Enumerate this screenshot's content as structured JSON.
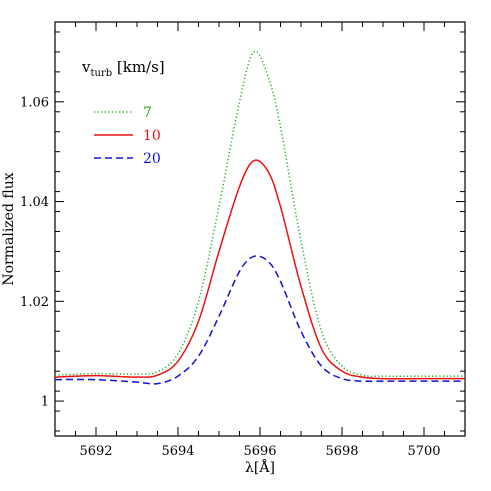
{
  "chart_data": {
    "type": "line",
    "title": "",
    "xlabel": "λ[Å]",
    "ylabel": "Normalized flux",
    "xlim": [
      5691,
      5701
    ],
    "ylim": [
      0.993,
      1.076
    ],
    "x_ticks": [
      5692,
      5694,
      5696,
      5698,
      5700
    ],
    "y_ticks": [
      1,
      1.02,
      1.04,
      1.06
    ],
    "x_tick_labels": [
      "5692",
      "5694",
      "5696",
      "5698",
      "5700"
    ],
    "y_tick_labels": [
      "1",
      "1.02",
      "1.04",
      "1.06"
    ],
    "grid": false,
    "legend_placement": "top-left",
    "legend_title": {
      "main": "v",
      "sub": "turb",
      "unit": " [km/s]"
    },
    "series": [
      {
        "name": "7",
        "color": "#22aa22",
        "dash": "dotted",
        "x": [
          5691,
          5692,
          5693,
          5693.5,
          5694,
          5694.5,
          5695,
          5695.5,
          5695.85,
          5696.2,
          5696.5,
          5697,
          5697.5,
          5698,
          5698.5,
          5699,
          5700,
          5701
        ],
        "y": [
          1.0052,
          1.0055,
          1.0054,
          1.0059,
          1.0095,
          1.02,
          1.039,
          1.06,
          1.07,
          1.065,
          1.055,
          1.032,
          1.014,
          1.007,
          1.0052,
          1.005,
          1.005,
          1.005
        ]
      },
      {
        "name": "10",
        "color": "#ee1111",
        "dash": "solid",
        "x": [
          5691,
          5692,
          5693,
          5693.5,
          5694,
          5694.5,
          5695,
          5695.5,
          5695.85,
          5696.2,
          5696.5,
          5697,
          5697.5,
          5698,
          5698.5,
          5699,
          5700,
          5701
        ],
        "y": [
          1.0048,
          1.0051,
          1.0048,
          1.0052,
          1.008,
          1.016,
          1.03,
          1.043,
          1.0482,
          1.046,
          1.039,
          1.023,
          1.0105,
          1.006,
          1.0048,
          1.0045,
          1.0045,
          1.0045
        ]
      },
      {
        "name": "20",
        "color": "#1111dd",
        "dash": "dashed",
        "x": [
          5691,
          5692,
          5693,
          5693.5,
          5694,
          5694.5,
          5695,
          5695.5,
          5695.85,
          5696.2,
          5696.5,
          5697,
          5697.5,
          5698,
          5698.5,
          5699,
          5700,
          5701
        ],
        "y": [
          1.0043,
          1.0043,
          1.0038,
          1.0035,
          1.005,
          1.009,
          1.017,
          1.026,
          1.029,
          1.028,
          1.024,
          1.014,
          1.007,
          1.0045,
          1.004,
          1.004,
          1.004,
          1.004
        ]
      }
    ]
  }
}
